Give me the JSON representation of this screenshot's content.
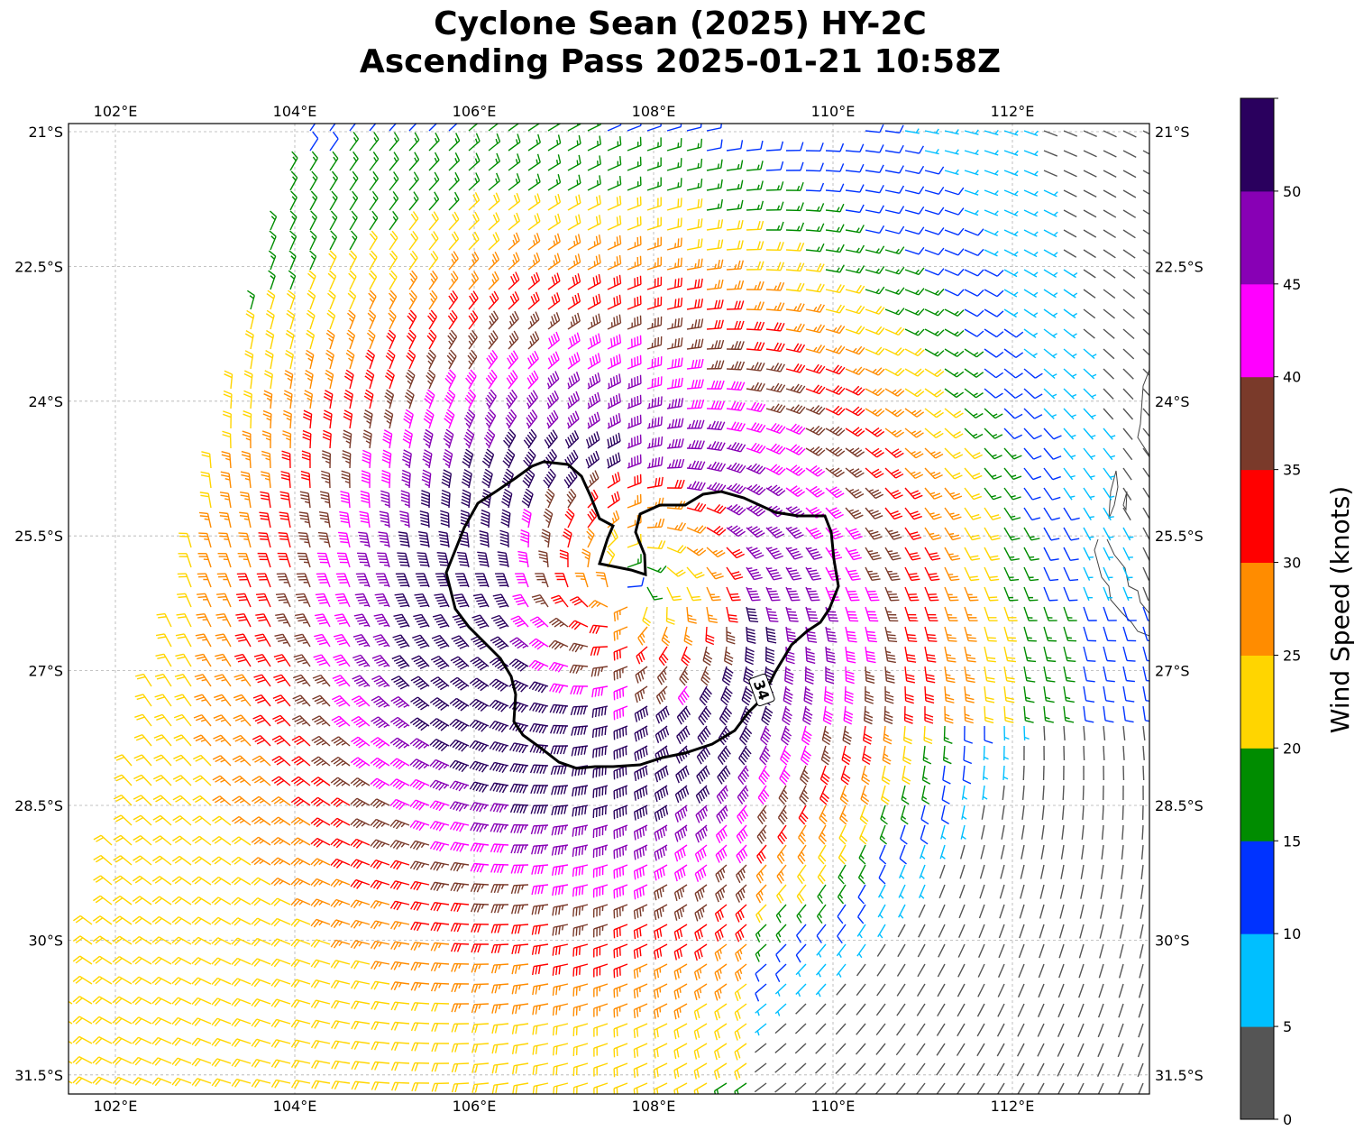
{
  "title": {
    "line1": "Cyclone Sean (2025) HY-2C",
    "line2": "Ascending Pass 2025-01-21 10:58Z"
  },
  "map": {
    "lon_ticks": [
      "102°E",
      "104°E",
      "106°E",
      "108°E",
      "110°E",
      "112°E"
    ],
    "lat_ticks": [
      "21°S",
      "22.5°S",
      "24°S",
      "25.5°S",
      "27°S",
      "28.5°S",
      "30°S",
      "31.5°S"
    ],
    "lon_values": [
      102,
      104,
      106,
      108,
      110,
      112
    ],
    "lat_values": [
      -21,
      -22.5,
      -24,
      -25.5,
      -27,
      -28.5,
      -30,
      -31.5
    ],
    "lon_range": [
      101.5,
      113.5
    ],
    "lat_range": [
      -31.7,
      -20.9
    ],
    "grid": "dashed",
    "contour_label": "34",
    "contour_level_knots": 34,
    "storm_center": {
      "lon": 107.7,
      "lat": -26.1
    },
    "wind_barbs": "approximately 0.22° grid of quality wind barbs, colored by speed"
  },
  "colorbar": {
    "label": "Wind Speed (knots)",
    "ticks": [
      "0",
      "5",
      "10",
      "15",
      "20",
      "25",
      "30",
      "35",
      "40",
      "45",
      "50"
    ],
    "bins": [
      {
        "min": 0,
        "max": 5,
        "color": "#555555"
      },
      {
        "min": 5,
        "max": 10,
        "color": "#00bfff"
      },
      {
        "min": 10,
        "max": 15,
        "color": "#0033ff"
      },
      {
        "min": 15,
        "max": 20,
        "color": "#008c00"
      },
      {
        "min": 20,
        "max": 25,
        "color": "#ffd500"
      },
      {
        "min": 25,
        "max": 30,
        "color": "#ff8c00"
      },
      {
        "min": 30,
        "max": 35,
        "color": "#ff0000"
      },
      {
        "min": 35,
        "max": 40,
        "color": "#7a3a2a"
      },
      {
        "min": 40,
        "max": 45,
        "color": "#ff00ff"
      },
      {
        "min": 45,
        "max": 50,
        "color": "#8800b5"
      },
      {
        "min": 50,
        "max": 55,
        "color": "#2a005e"
      }
    ]
  }
}
